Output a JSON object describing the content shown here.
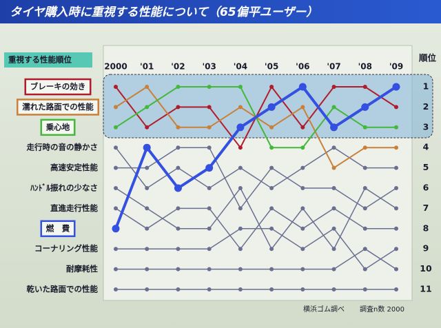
{
  "chart_data": {
    "type": "bump",
    "title": "タイヤ購入時に重視する性能について（65偏平ユーザー）",
    "subtitle": "重視する性能順位",
    "y_label": "順位",
    "source": "横浜ゴム調べ",
    "note": "調査n数 2000",
    "categories": [
      "2000",
      "'01",
      "'02",
      "'03",
      "'04",
      "'05",
      "'06",
      "'07",
      "'08",
      "'09"
    ],
    "ylim": [
      1,
      11
    ],
    "y_reversed": true,
    "yticks": [
      1,
      2,
      3,
      4,
      5,
      6,
      7,
      8,
      9,
      10,
      11
    ],
    "series": [
      {
        "name": "ブレーキの効き",
        "color": "#b01c2c",
        "width": 2,
        "boxed": true,
        "values": [
          1,
          3,
          2,
          2,
          4,
          1,
          3,
          1,
          1,
          2
        ]
      },
      {
        "name": "濡れた路面での性能",
        "color": "#c8803a",
        "width": 2,
        "boxed": true,
        "values": [
          2,
          1,
          3,
          3,
          2,
          3,
          2,
          5,
          4,
          4
        ]
      },
      {
        "name": "乗心地",
        "color": "#44b83a",
        "width": 2,
        "boxed": true,
        "values": [
          3,
          2,
          1,
          1,
          1,
          4,
          4,
          2,
          3,
          3
        ]
      },
      {
        "name": "走行時の音の静かさ",
        "color": "#6a6f90",
        "width": 1.5,
        "boxed": false,
        "values": [
          4,
          6,
          5,
          6,
          5,
          6,
          5,
          4,
          5,
          5
        ]
      },
      {
        "name": "高速安定性能",
        "color": "#6a6f90",
        "width": 1.5,
        "boxed": false,
        "values": [
          5,
          5,
          4,
          4,
          7,
          5,
          6,
          6,
          7,
          6
        ]
      },
      {
        "name": "ﾊﾝﾄﾞﾙ振れの少なさ",
        "color": "#6a6f90",
        "width": 1.5,
        "boxed": false,
        "values": [
          6,
          7,
          8,
          8,
          6,
          9,
          7,
          9,
          6,
          7
        ]
      },
      {
        "name": "直進走行性能",
        "color": "#6a6f90",
        "width": 1.5,
        "boxed": false,
        "values": [
          7,
          8,
          7,
          7,
          9,
          7,
          8,
          7,
          8,
          8
        ]
      },
      {
        "name": "燃　費",
        "color": "#3350e0",
        "width": 4,
        "boxed": true,
        "values": [
          8,
          4,
          6,
          5,
          3,
          2,
          1,
          3,
          2,
          1
        ]
      },
      {
        "name": "コーナリング性能",
        "color": "#6a6f90",
        "width": 1.5,
        "boxed": false,
        "values": [
          9,
          9,
          9,
          9,
          8,
          8,
          9,
          8,
          10,
          9
        ]
      },
      {
        "name": "耐摩耗性",
        "color": "#6a6f90",
        "width": 1.5,
        "boxed": false,
        "values": [
          10,
          10,
          10,
          10,
          10,
          10,
          10,
          10,
          9,
          10
        ]
      },
      {
        "name": "乾いた路面での性能",
        "color": "#6a6f90",
        "width": 1.5,
        "boxed": false,
        "values": [
          11,
          11,
          11,
          11,
          11,
          11,
          11,
          11,
          11,
          11
        ]
      }
    ]
  }
}
